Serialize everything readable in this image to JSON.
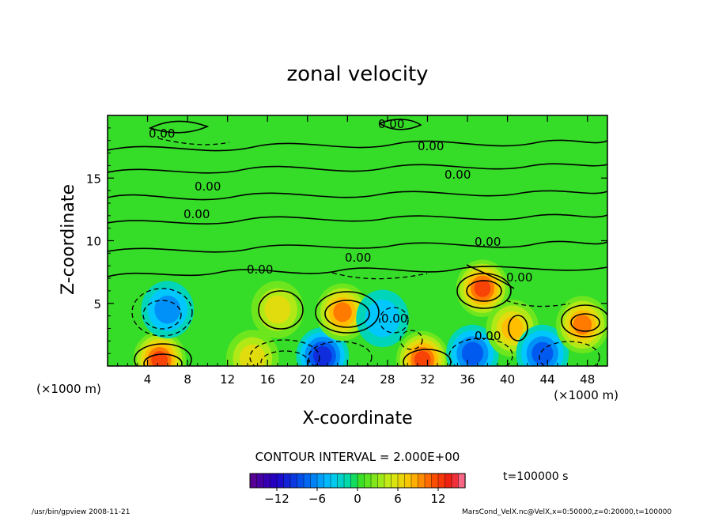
{
  "chart_data": {
    "type": "heatmap",
    "title": "zonal velocity",
    "xlabel": "X-coordinate",
    "ylabel": "Z-coordinate",
    "x_unit_left": "(×1000 m)",
    "x_unit_right": "(×1000 m)",
    "xlim": [
      0,
      50
    ],
    "ylim": [
      0,
      20
    ],
    "x_ticks": [
      4,
      8,
      12,
      16,
      20,
      24,
      28,
      32,
      36,
      40,
      44,
      48
    ],
    "y_ticks": [
      5,
      10,
      15
    ],
    "contour_interval_text": "CONTOUR INTERVAL = 2.000E+00",
    "contour_labels": [
      "0.00",
      "0.00",
      "0.00",
      "0.00",
      "0.00",
      "0.00",
      "0.00",
      "0.00",
      "0.00",
      "0.00",
      "0.00",
      "0.00"
    ],
    "time_text": "t=100000 s",
    "colorbar": {
      "range": [
        -16,
        16
      ],
      "ticks": [
        -12,
        -6,
        0,
        6,
        12
      ],
      "tick_labels": [
        "−12",
        "−6",
        "0",
        "6",
        "12"
      ]
    },
    "features": [
      {
        "x": 5.2,
        "z": 0.5,
        "value": 12
      },
      {
        "x": 6,
        "z": 4.5,
        "value": -5
      },
      {
        "x": 14.5,
        "z": 0.6,
        "value": 6
      },
      {
        "x": 17,
        "z": 4.5,
        "value": 5
      },
      {
        "x": 21.5,
        "z": 0.8,
        "value": -9
      },
      {
        "x": 23.5,
        "z": 4.3,
        "value": 10
      },
      {
        "x": 27.5,
        "z": 3.8,
        "value": -4
      },
      {
        "x": 31.5,
        "z": 0.5,
        "value": 12
      },
      {
        "x": 37.5,
        "z": 6.2,
        "value": 12
      },
      {
        "x": 36.5,
        "z": 1.0,
        "value": -8
      },
      {
        "x": 40.5,
        "z": 3.0,
        "value": 8
      },
      {
        "x": 43.5,
        "z": 1.0,
        "value": -7
      },
      {
        "x": 47.5,
        "z": 3.3,
        "value": 9
      }
    ]
  },
  "footer": {
    "left": "/usr/bin/gpview   2008-11-21",
    "right": "MarsCond_VelX.nc@VelX,x=0:50000,z=0:20000,t=100000"
  }
}
